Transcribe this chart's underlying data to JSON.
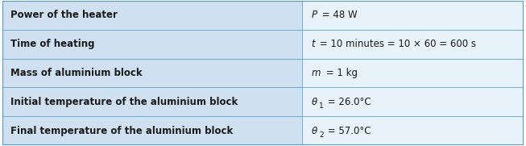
{
  "rows": [
    {
      "label": "Power of the heater",
      "value": "P = 48 W",
      "value_parts": [
        {
          "text": "P",
          "style": "italic"
        },
        {
          "text": " = 48 W",
          "style": "normal"
        }
      ]
    },
    {
      "label": "Time of heating",
      "value": "t = 10 minutes = 10 × 60 = 600 s",
      "value_parts": [
        {
          "text": "t",
          "style": "italic"
        },
        {
          "text": " = 10 minutes = 10 × 60 = 600 s",
          "style": "normal"
        }
      ]
    },
    {
      "label": "Mass of aluminium block",
      "value": "m = 1 kg",
      "value_parts": [
        {
          "text": "m",
          "style": "italic"
        },
        {
          "text": " = 1 kg",
          "style": "normal"
        }
      ]
    },
    {
      "label": "Initial temperature of the aluminium block",
      "value": "θ₁ = 26.0°C",
      "value_parts": [
        {
          "text": "θ",
          "style": "italic"
        },
        {
          "text": "1",
          "style": "sub"
        },
        {
          "text": " = 26.0°C",
          "style": "normal"
        }
      ]
    },
    {
      "label": "Final temperature of the aluminium block",
      "value": "θ₂ = 57.0°C",
      "value_parts": [
        {
          "text": "θ",
          "style": "italic"
        },
        {
          "text": "2",
          "style": "sub"
        },
        {
          "text": " = 57.0°C",
          "style": "normal"
        }
      ]
    }
  ],
  "left_bg": "#cfe0f0",
  "right_bg": "#e8f2fb",
  "border_color": "#6aadd5",
  "outer_border_color": "#5599cc",
  "text_color": "#1a1a1a",
  "col_split": 0.575,
  "label_fontsize": 8.5,
  "value_fontsize": 8.5,
  "fig_width": 6.53,
  "fig_height": 1.81,
  "dpi": 100
}
